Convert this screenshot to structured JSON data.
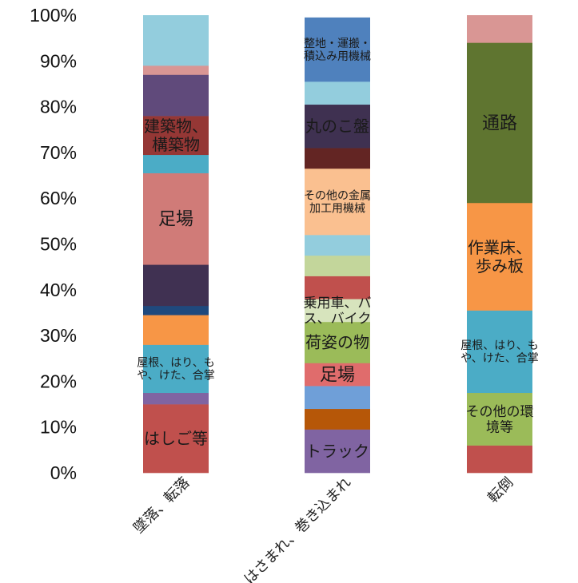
{
  "chart_data": {
    "type": "stacked_bar_percent",
    "title": "",
    "xlabel": "",
    "ylabel": "",
    "ylim": [
      0,
      100
    ],
    "y_ticks": [
      "0%",
      "10%",
      "20%",
      "30%",
      "40%",
      "50%",
      "60%",
      "70%",
      "80%",
      "90%",
      "100%"
    ],
    "grid": false,
    "legend": "none",
    "categories": [
      "墜落、転落",
      "はさまれ、巻き込まれ",
      "転倒"
    ],
    "bars": [
      {
        "category": "墜落、転落",
        "segments": [
          {
            "value": 15,
            "color": "#c0504d",
            "label": "はしご等"
          },
          {
            "value": 2.5,
            "color": "#8064a2",
            "label": ""
          },
          {
            "value": 10.5,
            "color": "#4bacc6",
            "label": "屋根、はり、も\nや、けた、合掌"
          },
          {
            "value": 6.5,
            "color": "#f79646",
            "label": ""
          },
          {
            "value": 2,
            "color": "#1f497d",
            "label": ""
          },
          {
            "value": 9,
            "color": "#403152",
            "label": ""
          },
          {
            "value": 20,
            "color": "#d07b78",
            "label": "足場"
          },
          {
            "value": 4,
            "color": "#4bacc6",
            "label": ""
          },
          {
            "value": 8.5,
            "color": "#953735",
            "label": "建築物、\n構築物"
          },
          {
            "value": 9,
            "color": "#604a7b",
            "label": ""
          },
          {
            "value": 2,
            "color": "#d99694",
            "label": ""
          },
          {
            "value": 11,
            "color": "#93cddd",
            "label": ""
          }
        ]
      },
      {
        "category": "はさまれ、巻き込まれ",
        "segments": [
          {
            "value": 9.5,
            "color": "#8064a2",
            "label": "トラック"
          },
          {
            "value": 4.5,
            "color": "#b65708",
            "label": ""
          },
          {
            "value": 5,
            "color": "#6f9fd8",
            "label": ""
          },
          {
            "value": 5,
            "color": "#e06c6c",
            "label": "足場"
          },
          {
            "value": 9,
            "color": "#9bbb59",
            "label": "荷姿の物"
          },
          {
            "value": 5,
            "color": "#d7e4bd",
            "label": "乗用車、バ\nス、バイク"
          },
          {
            "value": 5,
            "color": "#c0504d",
            "label": ""
          },
          {
            "value": 4.5,
            "color": "#c3d69b",
            "label": ""
          },
          {
            "value": 4.5,
            "color": "#93cddd",
            "label": ""
          },
          {
            "value": 14.5,
            "color": "#fac090",
            "label": "その他の金属\n加工用機械"
          },
          {
            "value": 4.5,
            "color": "#632523",
            "label": ""
          },
          {
            "value": 9.5,
            "color": "#3f3151",
            "label": "丸のこ盤"
          },
          {
            "value": 5,
            "color": "#93cddd",
            "label": ""
          },
          {
            "value": 14,
            "color": "#4f81bd",
            "label": "整地・運搬・\n積込み用機械"
          }
        ]
      },
      {
        "category": "転倒",
        "segments": [
          {
            "value": 6,
            "color": "#c0504d",
            "label": ""
          },
          {
            "value": 11.5,
            "color": "#9bbb59",
            "label": "その他の環\n境等"
          },
          {
            "value": 18,
            "color": "#4bacc6",
            "label": "屋根、はり、も\nや、けた、合掌"
          },
          {
            "value": 23.5,
            "color": "#f79646",
            "label": "作業床、\n歩み板"
          },
          {
            "value": 35,
            "color": "#5f7530",
            "label": "通路"
          },
          {
            "value": 6,
            "color": "#d99694",
            "label": ""
          }
        ]
      }
    ]
  }
}
